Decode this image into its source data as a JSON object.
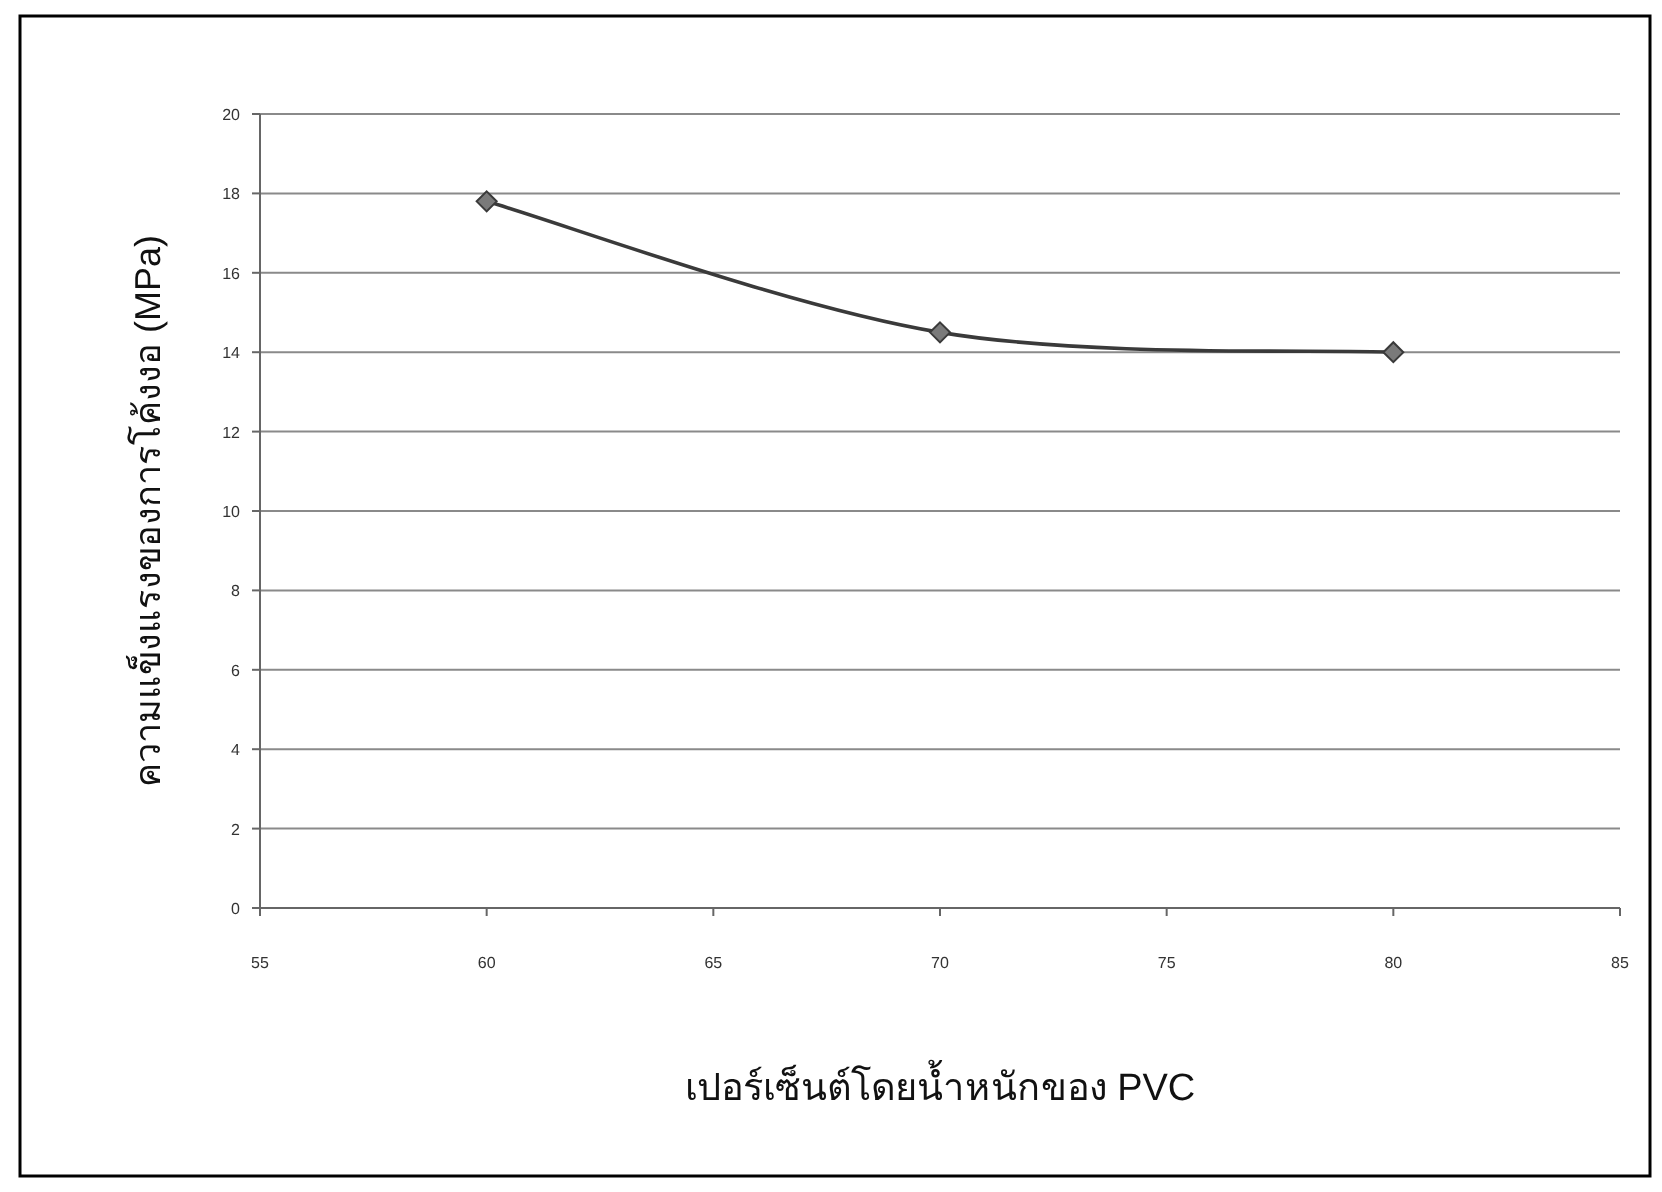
{
  "chart_data": {
    "type": "line",
    "xlabel": "เปอร์เซ็นต์โดยน้ำหนักของ PVC",
    "ylabel": "ความแข็งแรงของการโค้งงอ (MPa)",
    "x": [
      60,
      70,
      80
    ],
    "series": [
      {
        "color": "#3a3a3a",
        "values": [
          17.8,
          14.5,
          14.0
        ]
      }
    ],
    "xlim": [
      55,
      85
    ],
    "xticks": [
      55,
      60,
      65,
      70,
      75,
      80,
      85
    ],
    "ylim": [
      0,
      20
    ],
    "yticks": [
      0,
      2,
      4,
      6,
      8,
      10,
      12,
      14,
      16,
      18,
      20
    ],
    "grid": "y",
    "marker": "diamond"
  }
}
